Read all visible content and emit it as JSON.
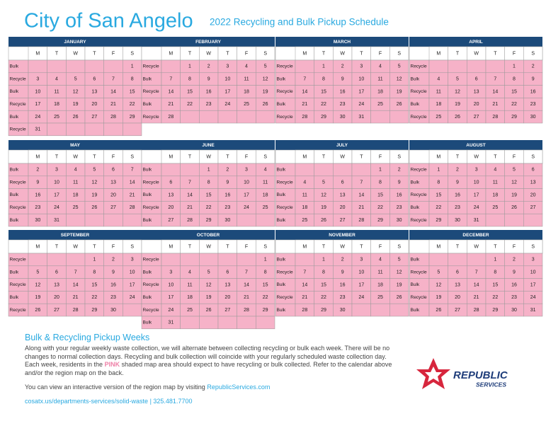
{
  "header": {
    "title": "City of San Angelo",
    "subtitle": "2022 Recycling and Bulk Pickup Schedule"
  },
  "weekdays": [
    "M",
    "T",
    "W",
    "T",
    "F",
    "S"
  ],
  "months": [
    {
      "name": "JANUARY",
      "weeks": [
        {
          "label": "Bulk",
          "days": [
            null,
            null,
            null,
            null,
            null,
            1
          ]
        },
        {
          "label": "Recycle",
          "days": [
            3,
            4,
            5,
            6,
            7,
            8
          ]
        },
        {
          "label": "Bulk",
          "days": [
            10,
            11,
            12,
            13,
            14,
            15
          ]
        },
        {
          "label": "Recycle",
          "days": [
            17,
            18,
            19,
            20,
            21,
            22
          ]
        },
        {
          "label": "Bulk",
          "days": [
            24,
            25,
            26,
            27,
            28,
            29
          ]
        },
        {
          "label": "Recycle",
          "days": [
            31,
            null,
            null,
            null,
            null,
            null
          ]
        }
      ]
    },
    {
      "name": "FEBRUARY",
      "weeks": [
        {
          "label": "Recycle",
          "days": [
            null,
            1,
            2,
            3,
            4,
            5
          ]
        },
        {
          "label": "Bulk",
          "days": [
            7,
            8,
            9,
            10,
            11,
            12
          ]
        },
        {
          "label": "Recycle",
          "days": [
            14,
            15,
            16,
            17,
            18,
            19
          ]
        },
        {
          "label": "Bulk",
          "days": [
            21,
            22,
            23,
            24,
            25,
            26
          ]
        },
        {
          "label": "Recycle",
          "days": [
            28,
            null,
            null,
            null,
            null,
            null
          ]
        }
      ]
    },
    {
      "name": "MARCH",
      "weeks": [
        {
          "label": "Recycle",
          "days": [
            null,
            1,
            2,
            3,
            4,
            5
          ]
        },
        {
          "label": "Bulk",
          "days": [
            7,
            8,
            9,
            10,
            11,
            12
          ]
        },
        {
          "label": "Recycle",
          "days": [
            14,
            15,
            16,
            17,
            18,
            19
          ]
        },
        {
          "label": "Bulk",
          "days": [
            21,
            22,
            23,
            24,
            25,
            26
          ]
        },
        {
          "label": "Recycle",
          "days": [
            28,
            29,
            30,
            31,
            null,
            null
          ]
        }
      ]
    },
    {
      "name": "APRIL",
      "weeks": [
        {
          "label": "Recycle",
          "days": [
            null,
            null,
            null,
            null,
            1,
            2
          ]
        },
        {
          "label": "Bulk",
          "days": [
            4,
            5,
            6,
            7,
            8,
            9
          ]
        },
        {
          "label": "Recycle",
          "days": [
            11,
            12,
            13,
            14,
            15,
            16
          ]
        },
        {
          "label": "Bulk",
          "days": [
            18,
            19,
            20,
            21,
            22,
            23
          ]
        },
        {
          "label": "Recycle",
          "days": [
            25,
            26,
            27,
            28,
            29,
            30
          ]
        }
      ]
    },
    {
      "name": "MAY",
      "weeks": [
        {
          "label": "Bulk",
          "days": [
            2,
            3,
            4,
            5,
            6,
            7
          ]
        },
        {
          "label": "Recycle",
          "days": [
            9,
            10,
            11,
            12,
            13,
            14
          ]
        },
        {
          "label": "Bulk",
          "days": [
            16,
            17,
            18,
            19,
            20,
            21
          ]
        },
        {
          "label": "Recycle",
          "days": [
            23,
            24,
            25,
            26,
            27,
            28
          ]
        },
        {
          "label": "Bulk",
          "days": [
            30,
            31,
            null,
            null,
            null,
            null
          ]
        }
      ]
    },
    {
      "name": "JUNE",
      "weeks": [
        {
          "label": "Bulk",
          "days": [
            null,
            null,
            1,
            2,
            3,
            4
          ]
        },
        {
          "label": "Recycle",
          "days": [
            6,
            7,
            8,
            9,
            10,
            11
          ]
        },
        {
          "label": "Bulk",
          "days": [
            13,
            14,
            15,
            16,
            17,
            18
          ]
        },
        {
          "label": "Recycle",
          "days": [
            20,
            21,
            22,
            23,
            24,
            25
          ]
        },
        {
          "label": "Bulk",
          "days": [
            27,
            28,
            29,
            30,
            null,
            null
          ]
        }
      ]
    },
    {
      "name": "JULY",
      "weeks": [
        {
          "label": "Bulk",
          "days": [
            null,
            null,
            null,
            null,
            1,
            2
          ]
        },
        {
          "label": "Recycle",
          "days": [
            4,
            5,
            6,
            7,
            8,
            9
          ]
        },
        {
          "label": "Bulk",
          "days": [
            11,
            12,
            13,
            14,
            15,
            16
          ]
        },
        {
          "label": "Recycle",
          "days": [
            18,
            19,
            20,
            21,
            22,
            23
          ]
        },
        {
          "label": "Bulk",
          "days": [
            25,
            26,
            27,
            28,
            29,
            30
          ]
        }
      ]
    },
    {
      "name": "AUGUST",
      "weeks": [
        {
          "label": "Recycle",
          "days": [
            1,
            2,
            3,
            4,
            5,
            6
          ]
        },
        {
          "label": "Bulk",
          "days": [
            8,
            9,
            10,
            11,
            12,
            13
          ]
        },
        {
          "label": "Recycle",
          "days": [
            15,
            16,
            17,
            18,
            19,
            20
          ]
        },
        {
          "label": "Bulk",
          "days": [
            22,
            23,
            24,
            25,
            26,
            27
          ]
        },
        {
          "label": "Recycle",
          "days": [
            29,
            30,
            31,
            null,
            null,
            null
          ]
        }
      ]
    },
    {
      "name": "SEPTEMBER",
      "weeks": [
        {
          "label": "Recycle",
          "days": [
            null,
            null,
            null,
            1,
            2,
            3
          ]
        },
        {
          "label": "Bulk",
          "days": [
            5,
            6,
            7,
            8,
            9,
            10
          ]
        },
        {
          "label": "Recycle",
          "days": [
            12,
            13,
            14,
            15,
            16,
            17
          ]
        },
        {
          "label": "Bulk",
          "days": [
            19,
            20,
            21,
            22,
            23,
            24
          ]
        },
        {
          "label": "Recycle",
          "days": [
            26,
            27,
            28,
            29,
            30,
            null
          ]
        }
      ]
    },
    {
      "name": "OCTOBER",
      "weeks": [
        {
          "label": "Recycle",
          "days": [
            null,
            null,
            null,
            null,
            null,
            1
          ]
        },
        {
          "label": "Bulk",
          "days": [
            3,
            4,
            5,
            6,
            7,
            8
          ]
        },
        {
          "label": "Recycle",
          "days": [
            10,
            11,
            12,
            13,
            14,
            15
          ]
        },
        {
          "label": "Bulk",
          "days": [
            17,
            18,
            19,
            20,
            21,
            22
          ]
        },
        {
          "label": "Recycle",
          "days": [
            24,
            25,
            26,
            27,
            28,
            29
          ]
        },
        {
          "label": "Bulk",
          "days": [
            31,
            null,
            null,
            null,
            null,
            null
          ]
        }
      ]
    },
    {
      "name": "NOVEMBER",
      "weeks": [
        {
          "label": "Bulk",
          "days": [
            null,
            1,
            2,
            3,
            4,
            5
          ]
        },
        {
          "label": "Recycle",
          "days": [
            7,
            8,
            9,
            10,
            11,
            12
          ]
        },
        {
          "label": "Bulk",
          "days": [
            14,
            15,
            16,
            17,
            18,
            19
          ]
        },
        {
          "label": "Recycle",
          "days": [
            21,
            22,
            23,
            24,
            25,
            26
          ]
        },
        {
          "label": "Bulk",
          "days": [
            28,
            29,
            30,
            null,
            null,
            null
          ]
        }
      ]
    },
    {
      "name": "DECEMBER",
      "weeks": [
        {
          "label": "Bulk",
          "days": [
            null,
            null,
            null,
            1,
            2,
            3
          ]
        },
        {
          "label": "Recycle",
          "days": [
            5,
            6,
            7,
            8,
            9,
            10
          ]
        },
        {
          "label": "Bulk",
          "days": [
            12,
            13,
            14,
            15,
            16,
            17
          ]
        },
        {
          "label": "Recycle",
          "days": [
            19,
            20,
            21,
            22,
            23,
            24
          ]
        },
        {
          "label": "Bulk",
          "days": [
            26,
            27,
            28,
            29,
            30,
            31
          ]
        }
      ]
    }
  ],
  "info": {
    "heading": "Bulk & Recycling Pickup Weeks",
    "paragraph_before": "Along with your regular weekly waste collection, we will alternate between collecting recycling or bulk each week. There will be no changes to normal collection days. Recycling and bulk collection will coincide with your regularly scheduled waste collection day. Each week, residents in the",
    "paragraph_highlight": "PINK",
    "paragraph_after": "shaded map area should expect to have recycling or bulk collected. Refer to the calendar above and/or the region map on the back.",
    "map_text": "You can view an interactive version of the region map by visiting",
    "map_link": "RepublicServices.com",
    "contact": "cosatx.us/departments-services/solid-waste | 325.481.7700"
  },
  "logo": {
    "name": "REPUBLIC",
    "tagline": "SERVICES"
  }
}
